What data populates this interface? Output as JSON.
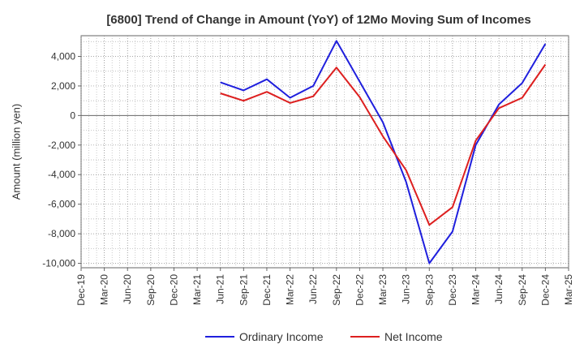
{
  "chart_data": {
    "type": "line",
    "title": "[6800]  Trend of Change in Amount (YoY) of 12Mo Moving Sum of Incomes",
    "ylabel": "Amount (million yen)",
    "xlabel": "",
    "ylim": [
      -10300,
      5400
    ],
    "y_ticks": [
      4000,
      2000,
      0,
      -2000,
      -4000,
      -6000,
      -8000,
      -10000
    ],
    "y_tick_labels": [
      "4,000",
      "2,000",
      "0",
      "-2,000",
      "-4,000",
      "-6,000",
      "-8,000",
      "-10,000"
    ],
    "categories": [
      "Dec-19",
      "Mar-20",
      "Jun-20",
      "Sep-20",
      "Dec-20",
      "Mar-21",
      "Jun-21",
      "Sep-21",
      "Dec-21",
      "Mar-22",
      "Jun-22",
      "Sep-22",
      "Dec-22",
      "Mar-23",
      "Jun-23",
      "Sep-23",
      "Dec-23",
      "Mar-24",
      "Jun-24",
      "Sep-24",
      "Dec-24",
      "Mar-25"
    ],
    "grid": true,
    "legend_position": "bottom",
    "series": [
      {
        "name": "Ordinary Income",
        "color": "#1f1fdd",
        "values": [
          null,
          null,
          null,
          null,
          null,
          null,
          2250,
          1700,
          2450,
          1200,
          2000,
          5050,
          2300,
          -450,
          -4500,
          -10000,
          -7850,
          -2000,
          750,
          2200,
          4850,
          null
        ]
      },
      {
        "name": "Net Income",
        "color": "#dd1f1f",
        "values": [
          null,
          null,
          null,
          null,
          null,
          null,
          1500,
          1000,
          1600,
          850,
          1300,
          3250,
          1250,
          -1400,
          -3700,
          -7400,
          -6200,
          -1700,
          500,
          1200,
          3450,
          null
        ]
      }
    ]
  }
}
